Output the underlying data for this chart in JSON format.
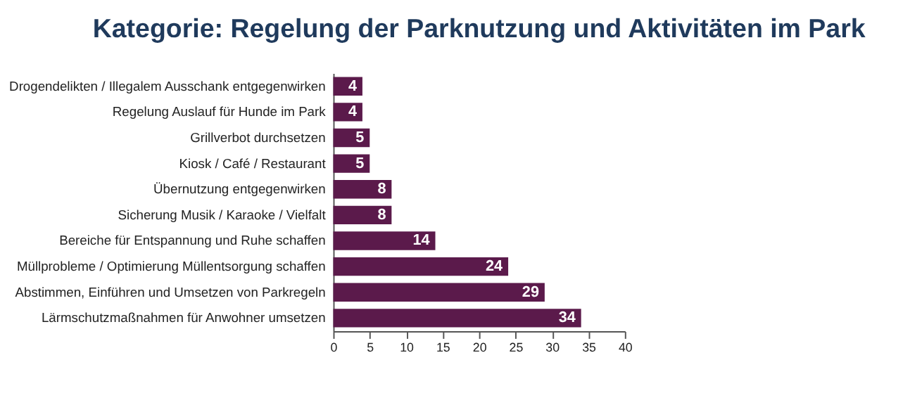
{
  "chart_data": {
    "type": "bar",
    "orientation": "horizontal",
    "title": "Kategorie: Regelung der Parknutzung und Aktivitäten im Park",
    "categories": [
      "Drogendelikten / Illegalem Ausschank entgegenwirken",
      "Regelung Auslauf für Hunde im Park",
      "Grillverbot durchsetzen",
      "Kiosk / Café / Restaurant",
      "Übernutzung entgegenwirken",
      "Sicherung Musik / Karaoke / Vielfalt",
      "Bereiche für Entspannung und Ruhe schaffen",
      "Müllprobleme / Optimierung Müllentsorgung schaffen",
      "Abstimmen, Einführen und Umsetzen von Parkregeln",
      "Lärmschutzmaßnahmen für Anwohner umsetzen"
    ],
    "values": [
      4,
      4,
      5,
      5,
      8,
      8,
      14,
      24,
      29,
      34
    ],
    "color": "#5b1a4b",
    "xlim": [
      0,
      40
    ],
    "xticks": [
      0,
      5,
      10,
      15,
      20,
      25,
      30,
      35,
      40
    ],
    "grid": false,
    "data_labels": true
  }
}
